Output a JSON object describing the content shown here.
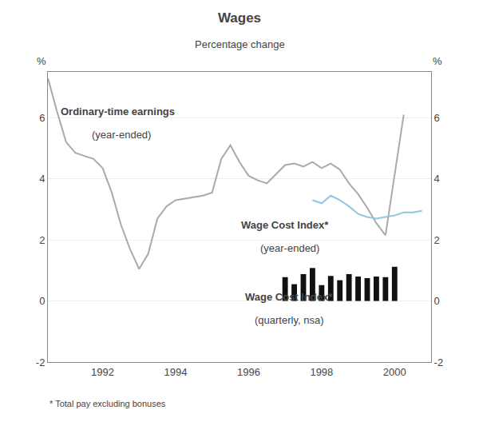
{
  "chart_data": {
    "type": "line",
    "title": "Wages",
    "subtitle": "Percentage change",
    "y_label": "%",
    "y2_label": "%",
    "footnote": "* Total pay excluding bonuses",
    "annotations": [
      "Ordinary-time earnings",
      "(year-ended)",
      "Wage Cost Index*",
      "(year-ended)",
      "Wage Cost Index*",
      "(quarterly, nsa)"
    ],
    "xlim": [
      1990.5,
      2001.0
    ],
    "xticks": [
      1992,
      1994,
      1996,
      1998,
      2000
    ],
    "ylim": [
      -2,
      7.5
    ],
    "yticks": [
      -2,
      0,
      2,
      4,
      6
    ],
    "y2lim": [
      -2,
      7.5
    ],
    "y2ticks": [
      -2,
      0,
      2,
      4,
      6
    ],
    "grid": true,
    "series": [
      {
        "type": "line",
        "color": "#aaaaaa",
        "x": [
          1990.5,
          1990.75,
          1991.0,
          1991.25,
          1991.5,
          1991.75,
          1992.0,
          1992.25,
          1992.5,
          1992.75,
          1993.0,
          1993.25,
          1993.5,
          1993.75,
          1994.0,
          1994.25,
          1994.5,
          1994.75,
          1995.0,
          1995.25,
          1995.5,
          1995.75,
          1996.0,
          1996.25,
          1996.5,
          1996.75,
          1997.0,
          1997.25,
          1997.5,
          1997.75,
          1998.0,
          1998.25,
          1998.5,
          1998.75,
          1999.0,
          1999.25,
          1999.5,
          1999.75,
          2000.0,
          2000.25
        ],
        "values": [
          7.3,
          6.2,
          5.2,
          4.85,
          4.75,
          4.65,
          4.35,
          3.55,
          2.5,
          1.7,
          1.05,
          1.55,
          2.7,
          3.1,
          3.3,
          3.35,
          3.4,
          3.45,
          3.55,
          4.65,
          5.1,
          4.55,
          4.1,
          3.95,
          3.85,
          4.15,
          4.45,
          4.5,
          4.4,
          4.55,
          4.35,
          4.5,
          4.3,
          3.85,
          3.5,
          3.05,
          2.55,
          2.15,
          4.15,
          6.1
        ]
      },
      {
        "type": "line",
        "color": "#92c5de",
        "x": [
          1997.75,
          1998.0,
          1998.25,
          1998.5,
          1998.75,
          1999.0,
          1999.25,
          1999.5,
          1999.75,
          2000.0,
          2000.25,
          2000.5,
          2000.75
        ],
        "values": [
          3.3,
          3.2,
          3.45,
          3.3,
          3.1,
          2.85,
          2.75,
          2.7,
          2.75,
          2.8,
          2.9,
          2.9,
          2.95
        ]
      },
      {
        "type": "bar",
        "color": "#111111",
        "x": [
          1997.0,
          1997.25,
          1997.5,
          1997.75,
          1998.0,
          1998.25,
          1998.5,
          1998.75,
          1999.0,
          1999.25,
          1999.5,
          1999.75,
          2000.0
        ],
        "values": [
          0.78,
          0.55,
          0.88,
          1.08,
          0.52,
          0.82,
          0.68,
          0.88,
          0.8,
          0.75,
          0.8,
          0.78,
          1.12
        ]
      }
    ]
  }
}
